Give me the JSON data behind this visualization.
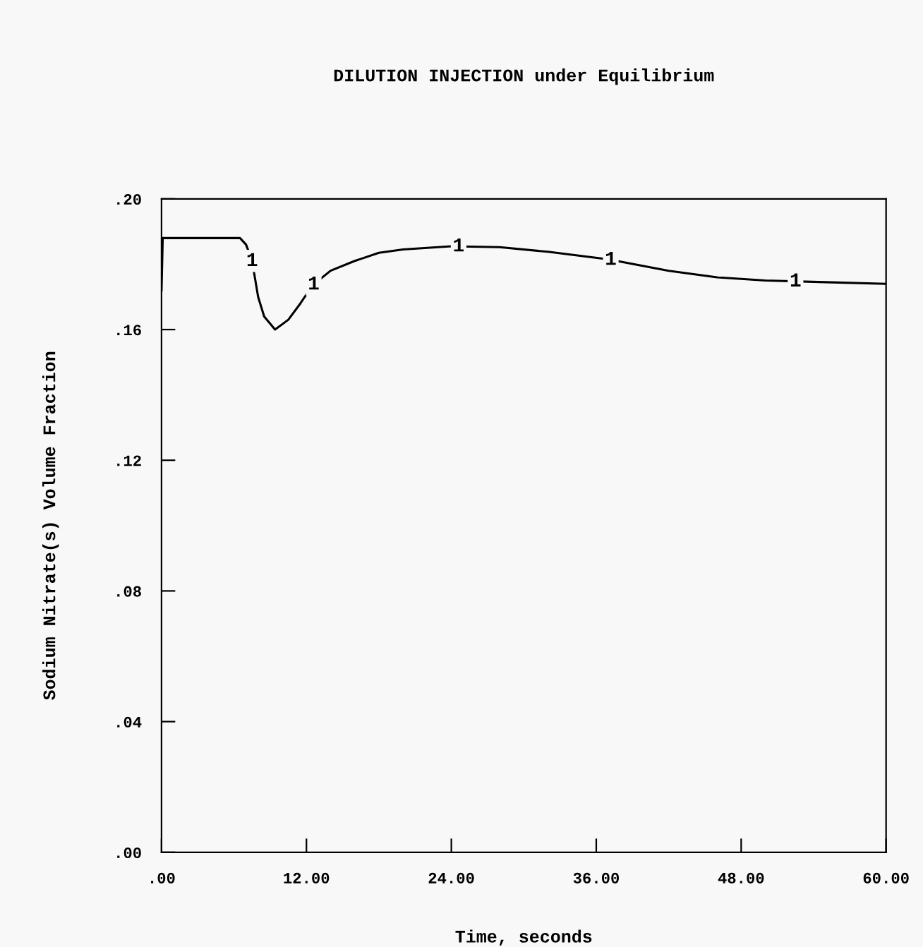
{
  "chart_data": {
    "type": "line",
    "title": "DILUTION INJECTION under Equilibrium",
    "xlabel": "Time, seconds",
    "ylabel": "Sodium Nitrate(s) Volume Fraction",
    "series": [
      {
        "name": "1",
        "color": "#000000",
        "x": [
          0,
          0.1,
          6.5,
          7,
          7.5,
          8,
          8.5,
          9.4,
          10.5,
          11.5,
          12.5,
          14,
          16,
          18,
          20,
          24,
          28,
          32,
          37,
          42,
          46,
          50,
          55,
          60
        ],
        "values": [
          0.172,
          0.188,
          0.188,
          0.186,
          0.181,
          0.17,
          0.164,
          0.16,
          0.163,
          0.168,
          0.1735,
          0.178,
          0.181,
          0.1835,
          0.1845,
          0.1855,
          0.1852,
          0.1838,
          0.1815,
          0.178,
          0.176,
          0.175,
          0.1745,
          0.174
        ]
      }
    ],
    "xlim": [
      0,
      60
    ],
    "ylim": [
      0,
      0.2
    ],
    "xticks": [
      {
        "value": 0,
        "label": ".00"
      },
      {
        "value": 12,
        "label": "12.00"
      },
      {
        "value": 24,
        "label": "24.00"
      },
      {
        "value": 36,
        "label": "36.00"
      },
      {
        "value": 48,
        "label": "48.00"
      },
      {
        "value": 60,
        "label": "60.00"
      }
    ],
    "yticks": [
      {
        "value": 0,
        "label": ".00"
      },
      {
        "value": 0.04,
        "label": ".04"
      },
      {
        "value": 0.08,
        "label": ".08"
      },
      {
        "value": 0.12,
        "label": ".12"
      },
      {
        "value": 0.16,
        "label": ".16"
      },
      {
        "value": 0.2,
        "label": ".20"
      }
    ],
    "grid": false,
    "legend": false,
    "marker": "none",
    "line_style": "solid"
  }
}
